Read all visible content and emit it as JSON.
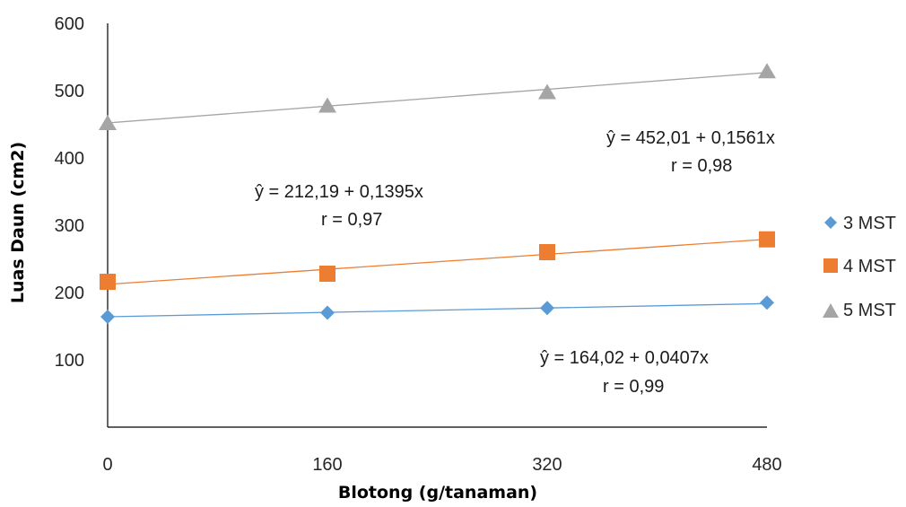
{
  "chart_data": {
    "type": "scatter",
    "xlabel": "Blotong (g/tanaman)",
    "ylabel": "Luas Daun (cm2)",
    "x": [
      0,
      160,
      320,
      480
    ],
    "x_ticks": [
      "0",
      "160",
      "320",
      "480"
    ],
    "y_ticks": [
      "100",
      "200",
      "300",
      "400",
      "500",
      "600"
    ],
    "xlim": [
      0,
      480
    ],
    "ylim": [
      0,
      600
    ],
    "grid": false,
    "legend_position": "right",
    "series": [
      {
        "name": "3 MST",
        "marker": "diamond",
        "color": "#5B9BD5",
        "values": [
          164,
          170,
          177,
          185
        ],
        "trend": [
          164.02,
          0.0407
        ]
      },
      {
        "name": "4 MST",
        "marker": "square",
        "color": "#ED7D31",
        "values": [
          216,
          228,
          260,
          279
        ],
        "trend": [
          212.19,
          0.1395
        ]
      },
      {
        "name": "5 MST",
        "marker": "triangle",
        "color": "#A5A5A5",
        "values": [
          452,
          478,
          498,
          529
        ],
        "trend": [
          452.01,
          0.1561
        ]
      }
    ],
    "annotations": [
      {
        "series": "3 MST",
        "equation": "ŷ = 164,02 + 0,0407x",
        "r": "r = 0,99"
      },
      {
        "series": "4 MST",
        "equation": "ŷ  = 212,19 + 0,1395x",
        "r": "r = 0,97"
      },
      {
        "series": "5 MST",
        "equation": "ŷ  = 452,01 + 0,1561x",
        "r": "r = 0,98"
      }
    ]
  }
}
